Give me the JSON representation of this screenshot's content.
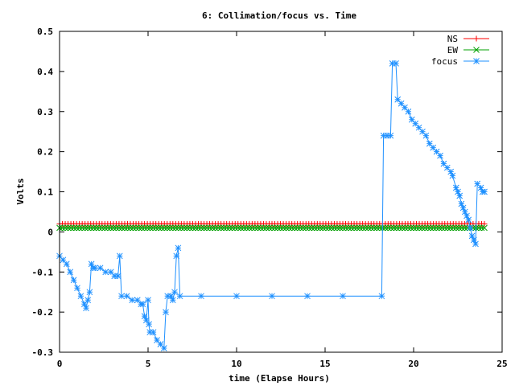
{
  "chart_data": {
    "type": "line",
    "title": "6: Collimation/focus vs. Time",
    "xlabel": "time (Elapse Hours)",
    "ylabel": "Volts",
    "xlim": [
      0,
      25
    ],
    "ylim": [
      -0.3,
      0.5
    ],
    "grid": false,
    "legend_position": "top-right",
    "x_ticks": [
      {
        "value": 0,
        "label": "0"
      },
      {
        "value": 5,
        "label": "5"
      },
      {
        "value": 10,
        "label": "10"
      },
      {
        "value": 15,
        "label": "15"
      },
      {
        "value": 20,
        "label": "20"
      },
      {
        "value": 25,
        "label": "25"
      }
    ],
    "y_ticks": [
      {
        "value": -0.3,
        "label": "-0.3"
      },
      {
        "value": -0.2,
        "label": "-0.2"
      },
      {
        "value": -0.1,
        "label": "-0.1"
      },
      {
        "value": 0,
        "label": "0"
      },
      {
        "value": 0.1,
        "label": "0.1"
      },
      {
        "value": 0.2,
        "label": "0.2"
      },
      {
        "value": 0.3,
        "label": "0.3"
      },
      {
        "value": 0.4,
        "label": "0.4"
      },
      {
        "value": 0.5,
        "label": "0.5"
      }
    ],
    "series": [
      {
        "name": "NS",
        "color": "#ff0000",
        "marker": "plus",
        "points": [
          [
            0,
            0.02
          ],
          [
            24,
            0.02
          ]
        ],
        "markers_every": 0.16
      },
      {
        "name": "EW",
        "color": "#00a000",
        "marker": "cross",
        "points": [
          [
            0,
            0.01
          ],
          [
            24,
            0.01
          ]
        ],
        "markers_every": 0.16
      },
      {
        "name": "focus",
        "color": "#1e90ff",
        "marker": "star",
        "points": [
          [
            0.0,
            -0.06
          ],
          [
            0.2,
            -0.07
          ],
          [
            0.4,
            -0.08
          ],
          [
            0.6,
            -0.1
          ],
          [
            0.8,
            -0.12
          ],
          [
            1.0,
            -0.14
          ],
          [
            1.2,
            -0.16
          ],
          [
            1.4,
            -0.18
          ],
          [
            1.5,
            -0.19
          ],
          [
            1.6,
            -0.17
          ],
          [
            1.7,
            -0.15
          ],
          [
            1.8,
            -0.08
          ],
          [
            1.9,
            -0.09
          ],
          [
            2.0,
            -0.09
          ],
          [
            2.3,
            -0.09
          ],
          [
            2.6,
            -0.1
          ],
          [
            2.9,
            -0.1
          ],
          [
            3.1,
            -0.11
          ],
          [
            3.3,
            -0.11
          ],
          [
            3.4,
            -0.06
          ],
          [
            3.5,
            -0.16
          ],
          [
            3.8,
            -0.16
          ],
          [
            4.1,
            -0.17
          ],
          [
            4.4,
            -0.17
          ],
          [
            4.6,
            -0.18
          ],
          [
            4.7,
            -0.18
          ],
          [
            4.8,
            -0.21
          ],
          [
            4.9,
            -0.22
          ],
          [
            5.0,
            -0.17
          ],
          [
            5.05,
            -0.23
          ],
          [
            5.1,
            -0.25
          ],
          [
            5.3,
            -0.25
          ],
          [
            5.5,
            -0.27
          ],
          [
            5.7,
            -0.28
          ],
          [
            5.9,
            -0.29
          ],
          [
            6.0,
            -0.2
          ],
          [
            6.1,
            -0.16
          ],
          [
            6.3,
            -0.16
          ],
          [
            6.4,
            -0.17
          ],
          [
            6.5,
            -0.15
          ],
          [
            6.6,
            -0.06
          ],
          [
            6.7,
            -0.04
          ],
          [
            6.8,
            -0.16
          ],
          [
            8.0,
            -0.16
          ],
          [
            10.0,
            -0.16
          ],
          [
            12.0,
            -0.16
          ],
          [
            14.0,
            -0.16
          ],
          [
            16.0,
            -0.16
          ],
          [
            18.2,
            -0.16
          ],
          [
            18.3,
            0.24
          ],
          [
            18.5,
            0.24
          ],
          [
            18.7,
            0.24
          ],
          [
            18.8,
            0.42
          ],
          [
            19.0,
            0.42
          ],
          [
            19.1,
            0.33
          ],
          [
            19.3,
            0.32
          ],
          [
            19.5,
            0.31
          ],
          [
            19.7,
            0.3
          ],
          [
            19.9,
            0.28
          ],
          [
            20.1,
            0.27
          ],
          [
            20.3,
            0.26
          ],
          [
            20.5,
            0.25
          ],
          [
            20.7,
            0.24
          ],
          [
            20.9,
            0.22
          ],
          [
            21.1,
            0.21
          ],
          [
            21.3,
            0.2
          ],
          [
            21.5,
            0.19
          ],
          [
            21.7,
            0.17
          ],
          [
            21.9,
            0.16
          ],
          [
            22.1,
            0.15
          ],
          [
            22.2,
            0.14
          ],
          [
            22.4,
            0.11
          ],
          [
            22.5,
            0.1
          ],
          [
            22.6,
            0.09
          ],
          [
            22.7,
            0.07
          ],
          [
            22.8,
            0.06
          ],
          [
            22.9,
            0.05
          ],
          [
            23.0,
            0.04
          ],
          [
            23.1,
            0.03
          ],
          [
            23.2,
            0.01
          ],
          [
            23.3,
            -0.01
          ],
          [
            23.4,
            -0.02
          ],
          [
            23.5,
            -0.03
          ],
          [
            23.6,
            0.12
          ],
          [
            23.8,
            0.11
          ],
          [
            23.9,
            0.1
          ],
          [
            24.0,
            0.1
          ]
        ]
      }
    ]
  }
}
